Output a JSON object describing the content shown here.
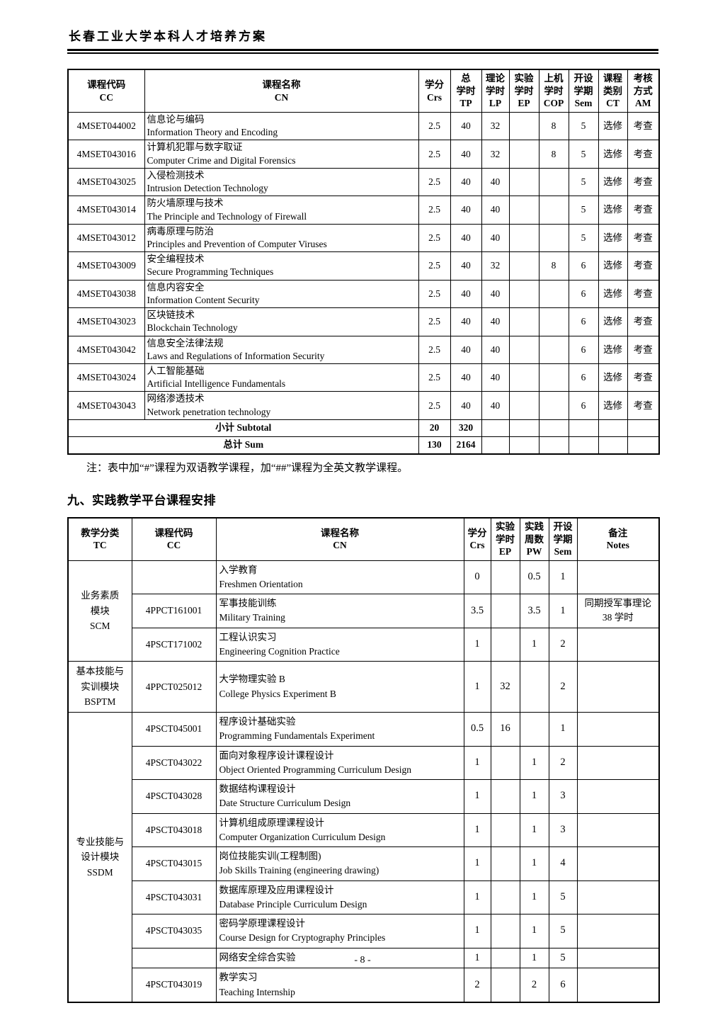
{
  "page": {
    "title": "长春工业大学本科人才培养方案",
    "note": "注：表中加“#”课程为双语教学课程，加“##”课程为全英文教学课程。",
    "section_heading": "九、实践教学平台课程安排",
    "page_number": "- 8 -"
  },
  "elective_table": {
    "headers": {
      "cc": "课程代码\nCC",
      "cn": "课程名称\nCN",
      "crs": "学分\nCrs",
      "tp": "总\n学时\nTP",
      "lp": "理论\n学时\nLP",
      "ep": "实验\n学时\nEP",
      "cop": "上机\n学时\nCOP",
      "sem": "开设\n学期\nSem",
      "ct": "课程\n类别\nCT",
      "am": "考核\n方式\nAM"
    },
    "rows": [
      {
        "code": "4MSET044002",
        "cn": "信息论与编码",
        "en": "Information Theory and Encoding",
        "crs": "2.5",
        "tp": "40",
        "lp": "32",
        "ep": "",
        "cop": "8",
        "sem": "5",
        "ct": "选修",
        "am": "考查"
      },
      {
        "code": "4MSET043016",
        "cn": "计算机犯罪与数字取证",
        "en": "Computer Crime and Digital Forensics",
        "crs": "2.5",
        "tp": "40",
        "lp": "32",
        "ep": "",
        "cop": "8",
        "sem": "5",
        "ct": "选修",
        "am": "考查"
      },
      {
        "code": "4MSET043025",
        "cn": "入侵检测技术",
        "en": "Intrusion Detection Technology",
        "crs": "2.5",
        "tp": "40",
        "lp": "40",
        "ep": "",
        "cop": "",
        "sem": "5",
        "ct": "选修",
        "am": "考查"
      },
      {
        "code": "4MSET043014",
        "cn": "防火墙原理与技术",
        "en": "The Principle and Technology of Firewall",
        "crs": "2.5",
        "tp": "40",
        "lp": "40",
        "ep": "",
        "cop": "",
        "sem": "5",
        "ct": "选修",
        "am": "考查"
      },
      {
        "code": "4MSET043012",
        "cn": "病毒原理与防治",
        "en": "Principles and Prevention of Computer Viruses",
        "crs": "2.5",
        "tp": "40",
        "lp": "40",
        "ep": "",
        "cop": "",
        "sem": "5",
        "ct": "选修",
        "am": "考查"
      },
      {
        "code": "4MSET043009",
        "cn": "安全编程技术",
        "en": "Secure Programming Techniques",
        "crs": "2.5",
        "tp": "40",
        "lp": "32",
        "ep": "",
        "cop": "8",
        "sem": "6",
        "ct": "选修",
        "am": "考查"
      },
      {
        "code": "4MSET043038",
        "cn": "信息内容安全",
        "en": "Information Content Security",
        "crs": "2.5",
        "tp": "40",
        "lp": "40",
        "ep": "",
        "cop": "",
        "sem": "6",
        "ct": "选修",
        "am": "考查"
      },
      {
        "code": "4MSET043023",
        "cn": "区块链技术",
        "en": "Blockchain Technology",
        "crs": "2.5",
        "tp": "40",
        "lp": "40",
        "ep": "",
        "cop": "",
        "sem": "6",
        "ct": "选修",
        "am": "考查"
      },
      {
        "code": "4MSET043042",
        "cn": "信息安全法律法规",
        "en": "Laws and Regulations of Information Security",
        "crs": "2.5",
        "tp": "40",
        "lp": "40",
        "ep": "",
        "cop": "",
        "sem": "6",
        "ct": "选修",
        "am": "考查"
      },
      {
        "code": "4MSET043024",
        "cn": "人工智能基础",
        "en": "Artificial Intelligence Fundamentals",
        "crs": "2.5",
        "tp": "40",
        "lp": "40",
        "ep": "",
        "cop": "",
        "sem": "6",
        "ct": "选修",
        "am": "考查"
      },
      {
        "code": "4MSET043043",
        "cn": "网络渗透技术",
        "en": "Network penetration technology",
        "crs": "2.5",
        "tp": "40",
        "lp": "40",
        "ep": "",
        "cop": "",
        "sem": "6",
        "ct": "选修",
        "am": "考查"
      }
    ],
    "subtotal": {
      "label": "小计 Subtotal",
      "crs": "20",
      "tp": "320"
    },
    "sum": {
      "label": "总计 Sum",
      "crs": "130",
      "tp": "2164"
    }
  },
  "practice_table": {
    "headers": {
      "tc": "教学分类\nTC",
      "cc": "课程代码\nCC",
      "cn": "课程名称\nCN",
      "crs": "学分\nCrs",
      "ep": "实验\n学时\nEP",
      "pw": "实践\n周数\nPW",
      "sem": "开设\n学期\nSem",
      "notes": "备注\nNotes"
    },
    "groups": [
      {
        "label": "业务素质\n模块\nSCM",
        "rows": [
          {
            "code": "",
            "cn": "入学教育",
            "en": "Freshmen Orientation",
            "crs": "0",
            "ep": "",
            "pw": "0.5",
            "sem": "1",
            "notes": ""
          },
          {
            "code": "4PPCT161001",
            "cn": "军事技能训练",
            "en": "Military Training",
            "crs": "3.5",
            "ep": "",
            "pw": "3.5",
            "sem": "1",
            "notes": "同期授军事理论\n38 学时"
          },
          {
            "code": "4PSCT171002",
            "cn": "工程认识实习",
            "en": "Engineering Cognition Practice",
            "crs": "1",
            "ep": "",
            "pw": "1",
            "sem": "2",
            "notes": ""
          }
        ]
      },
      {
        "label": "基本技能与\n实训模块\nBSPTM",
        "rows": [
          {
            "code": "4PPCT025012",
            "cn": "大学物理实验 B",
            "en": "College Physics Experiment B",
            "crs": "1",
            "ep": "32",
            "pw": "",
            "sem": "2",
            "notes": ""
          }
        ]
      },
      {
        "label": "专业技能与\n设计模块\nSSDM",
        "rows": [
          {
            "code": "4PSCT045001",
            "cn": "程序设计基础实验",
            "en": "Programming Fundamentals Experiment",
            "crs": "0.5",
            "ep": "16",
            "pw": "",
            "sem": "1",
            "notes": ""
          },
          {
            "code": "4PSCT043022",
            "cn": "面向对象程序设计课程设计",
            "en": "Object Oriented Programming Curriculum Design",
            "crs": "1",
            "ep": "",
            "pw": "1",
            "sem": "2",
            "notes": ""
          },
          {
            "code": "4PSCT043028",
            "cn": "数据结构课程设计",
            "en": "Date Structure Curriculum Design",
            "crs": "1",
            "ep": "",
            "pw": "1",
            "sem": "3",
            "notes": ""
          },
          {
            "code": "4PSCT043018",
            "cn": "计算机组成原理课程设计",
            "en": "Computer Organization Curriculum Design",
            "crs": "1",
            "ep": "",
            "pw": "1",
            "sem": "3",
            "notes": ""
          },
          {
            "code": "4PSCT043015",
            "cn": "岗位技能实训(工程制图)",
            "en": "Job Skills Training (engineering drawing)",
            "crs": "1",
            "ep": "",
            "pw": "1",
            "sem": "4",
            "notes": ""
          },
          {
            "code": "4PSCT043031",
            "cn": "数据库原理及应用课程设计",
            "en": "Database Principle Curriculum Design",
            "crs": "1",
            "ep": "",
            "pw": "1",
            "sem": "5",
            "notes": ""
          },
          {
            "code": "4PSCT043035",
            "cn": "密码学原理课程设计",
            "en": "Course Design for Cryptography Principles",
            "crs": "1",
            "ep": "",
            "pw": "1",
            "sem": "5",
            "notes": ""
          },
          {
            "code": "",
            "cn": "网络安全综合实验",
            "en": "",
            "crs": "1",
            "ep": "",
            "pw": "1",
            "sem": "5",
            "notes": ""
          },
          {
            "code": "4PSCT043019",
            "cn": "教学实习",
            "en": "Teaching Internship",
            "crs": "2",
            "ep": "",
            "pw": "2",
            "sem": "6",
            "notes": ""
          }
        ]
      }
    ]
  }
}
